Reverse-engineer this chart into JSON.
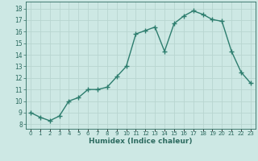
{
  "x": [
    0,
    1,
    2,
    3,
    4,
    5,
    6,
    7,
    8,
    9,
    10,
    11,
    12,
    13,
    14,
    15,
    16,
    17,
    18,
    19,
    20,
    21,
    22,
    23
  ],
  "y": [
    9.0,
    8.6,
    8.3,
    8.7,
    10.0,
    10.3,
    11.0,
    11.0,
    11.2,
    12.1,
    13.0,
    15.8,
    16.1,
    16.4,
    14.3,
    16.7,
    17.35,
    17.8,
    17.5,
    17.05,
    16.9,
    14.3,
    12.5,
    11.55
  ],
  "line_color": "#2d7d6e",
  "marker": "+",
  "marker_size": 4,
  "bg_color": "#cde8e4",
  "grid_color": "#b8d5d0",
  "xlabel": "Humidex (Indice chaleur)",
  "ylabel_ticks": [
    8,
    9,
    10,
    11,
    12,
    13,
    14,
    15,
    16,
    17,
    18
  ],
  "ylim": [
    7.6,
    18.6
  ],
  "xlim": [
    -0.5,
    23.5
  ],
  "tick_color": "#2d6b60",
  "linewidth": 1.0
}
